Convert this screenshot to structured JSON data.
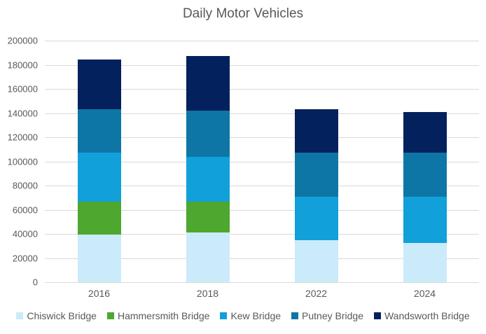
{
  "chart_data": {
    "type": "bar",
    "stacked": true,
    "title": "Daily Motor Vehicles",
    "categories": [
      "2016",
      "2018",
      "2022",
      "2024"
    ],
    "series": [
      {
        "name": "Chiswick Bridge",
        "color": "#cbebfa",
        "values": [
          39500,
          41000,
          35000,
          32500
        ]
      },
      {
        "name": "Hammersmith Bridge",
        "color": "#4ea72e",
        "values": [
          27000,
          25500,
          0,
          0
        ]
      },
      {
        "name": "Kew Bridge",
        "color": "#12a0db",
        "values": [
          40500,
          37500,
          35500,
          38000
        ]
      },
      {
        "name": "Putney Bridge",
        "color": "#0e76a6",
        "values": [
          36000,
          38000,
          36500,
          37000
        ]
      },
      {
        "name": "Wandsworth Bridge",
        "color": "#03215c",
        "values": [
          41500,
          45500,
          36000,
          33500
        ]
      }
    ],
    "totals": [
      184500,
      187500,
      143000,
      141000
    ],
    "xlabel": "",
    "ylabel": "",
    "ylim": [
      0,
      200000
    ],
    "ytick_interval": 20000,
    "ytick_labels": [
      "0",
      "20000",
      "40000",
      "60000",
      "80000",
      "100000",
      "120000",
      "140000",
      "160000",
      "180000",
      "200000"
    ],
    "grid": true,
    "gridline_color": "#d9d9d9",
    "legend_position": "bottom",
    "text_color": "#595959"
  }
}
